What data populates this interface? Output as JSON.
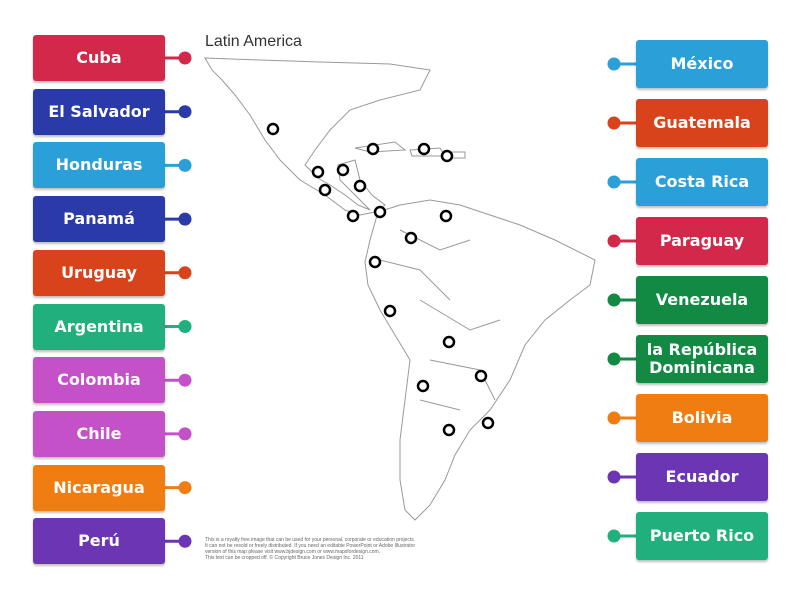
{
  "map": {
    "title": "Latin America",
    "credit": [
      "This is a royalty free image that can be used for your personal, corporate or education projects.",
      "It can not be resold or freely distributed. If you need an editable PowerPoint or Adobe Illustrator",
      "version of this map please visit www.bjdesign.com or www.mapsfordesign.com.",
      "This text can be cropped off.  © Copyright Bruce Jones Design Inc. 2011"
    ]
  },
  "left_labels": [
    "Cuba",
    "El Salvador",
    "Honduras",
    "Panamá",
    "Uruguay",
    "Argentina",
    "Colombia",
    "Chile",
    "Nicaragua",
    "Perú"
  ],
  "right_labels": [
    "México",
    "Guatemala",
    "Costa Rica",
    "Paraguay",
    "Venezuela",
    "la República Dominicana",
    "Bolivia",
    "Ecuador",
    "Puerto Rico"
  ]
}
